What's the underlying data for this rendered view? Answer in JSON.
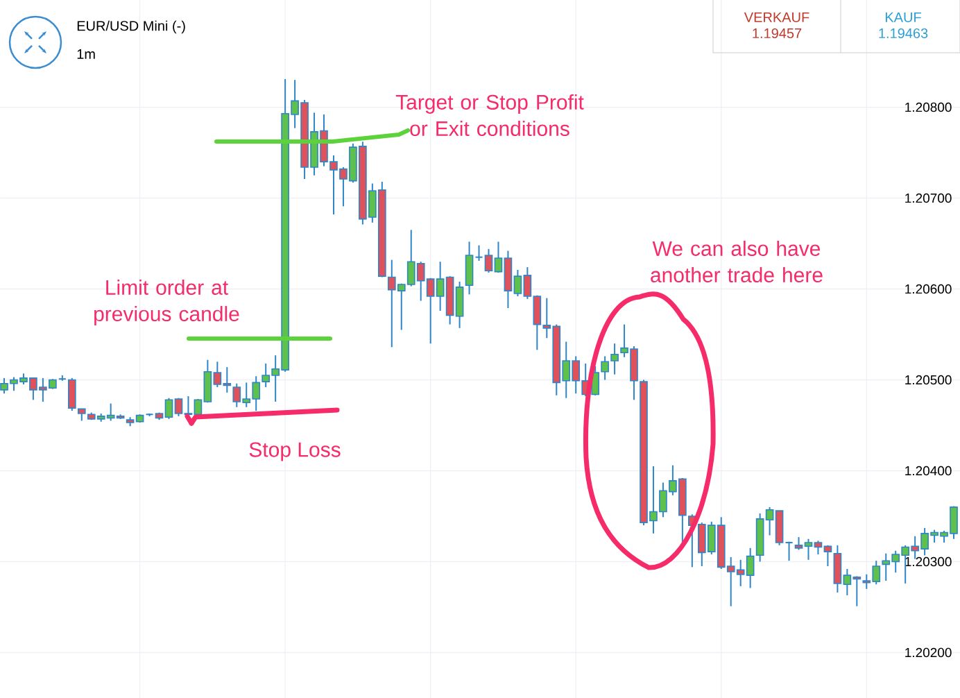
{
  "chart_data": {
    "type": "candlestick",
    "title": "EUR/USD Mini (-)",
    "subtitle": "1m",
    "annotations": [
      "VERKAUF",
      "1.19457",
      "KAUF",
      "1.19463",
      "Target or Stop Profit or Exit conditions",
      "Limit order at previous candle",
      "Stop Loss",
      "We can also have another trade here"
    ],
    "categories": [
      null,
      null,
      null,
      null,
      null,
      null,
      null,
      null,
      null,
      null,
      null,
      null,
      null,
      null,
      null,
      null,
      null,
      null,
      null,
      null,
      null,
      null,
      null,
      null,
      null,
      null,
      null,
      null,
      null,
      null,
      null,
      null,
      null,
      null,
      null,
      null,
      null,
      null,
      null,
      null,
      null,
      null,
      null,
      null,
      null,
      null,
      null,
      null,
      null,
      null,
      null,
      null,
      null,
      null,
      null,
      null,
      null,
      null,
      null,
      null,
      null,
      null,
      null,
      null,
      null,
      null,
      null,
      null,
      null,
      null,
      null,
      null,
      null,
      null,
      null,
      null,
      null,
      null,
      null,
      null,
      null,
      null,
      null,
      null,
      null,
      null,
      null,
      null,
      null,
      null,
      null,
      null,
      null,
      null,
      null,
      null,
      null,
      null,
      null
    ],
    "ohlc": [
      [
        1.20489,
        1.20502,
        1.20485,
        1.20496
      ],
      [
        1.20496,
        1.20503,
        1.20488,
        1.205
      ],
      [
        1.20498,
        1.20507,
        1.20495,
        1.20502
      ],
      [
        1.20502,
        1.20502,
        1.20478,
        1.20489
      ],
      [
        1.20492,
        1.20502,
        1.20476,
        1.20489
      ],
      [
        1.20491,
        1.20501,
        1.2049,
        1.205
      ],
      [
        1.20501,
        1.20505,
        1.20499,
        1.20501
      ],
      [
        1.205,
        1.20502,
        1.20466,
        1.20469
      ],
      [
        1.20468,
        1.20468,
        1.20455,
        1.20463
      ],
      [
        1.20462,
        1.20464,
        1.20456,
        1.20457
      ],
      [
        1.20457,
        1.20463,
        1.20454,
        1.2046
      ],
      [
        1.20458,
        1.20474,
        1.20455,
        1.20461
      ],
      [
        1.2046,
        1.20462,
        1.20457,
        1.20458
      ],
      [
        1.20456,
        1.20459,
        1.20449,
        1.20453
      ],
      [
        1.20454,
        1.20462,
        1.20453,
        1.20461
      ],
      [
        1.20462,
        1.20463,
        1.2046,
        1.20462
      ],
      [
        1.20463,
        1.20464,
        1.20456,
        1.20458
      ],
      [
        1.20459,
        1.2048,
        1.20457,
        1.20478
      ],
      [
        1.20479,
        1.2048,
        1.2046,
        1.20463
      ],
      [
        1.20463,
        1.20482,
        1.2046,
        1.20462
      ],
      [
        1.20462,
        1.20479,
        1.2046,
        1.20478
      ],
      [
        1.20476,
        1.20522,
        1.20475,
        1.20509
      ],
      [
        1.20508,
        1.2052,
        1.20492,
        1.20495
      ],
      [
        1.20496,
        1.20514,
        1.20486,
        1.20494
      ],
      [
        1.20492,
        1.20496,
        1.2047,
        1.20476
      ],
      [
        1.20475,
        1.20497,
        1.2047,
        1.20479
      ],
      [
        1.20479,
        1.20504,
        1.20466,
        1.20497
      ],
      [
        1.20498,
        1.20518,
        1.20492,
        1.20505
      ],
      [
        1.20505,
        1.20527,
        1.20476,
        1.20512
      ],
      [
        1.20511,
        1.20831,
        1.20509,
        1.20793
      ],
      [
        1.20792,
        1.2083,
        1.20777,
        1.20807
      ],
      [
        1.20805,
        1.20808,
        1.20721,
        1.20734
      ],
      [
        1.20734,
        1.20794,
        1.20725,
        1.20773
      ],
      [
        1.20774,
        1.20792,
        1.20735,
        1.2074
      ],
      [
        1.2074,
        1.20747,
        1.20682,
        1.20731
      ],
      [
        1.20732,
        1.20734,
        1.20691,
        1.20721
      ],
      [
        1.20719,
        1.2076,
        1.20717,
        1.20756
      ],
      [
        1.20757,
        1.20762,
        1.20671,
        1.20677
      ],
      [
        1.20679,
        1.20716,
        1.20673,
        1.20708
      ],
      [
        1.20709,
        1.20718,
        1.20613,
        1.20614
      ],
      [
        1.20613,
        1.20632,
        1.20536,
        1.20599
      ],
      [
        1.20598,
        1.20606,
        1.20555,
        1.20605
      ],
      [
        1.20605,
        1.20665,
        1.20603,
        1.2063
      ],
      [
        1.20628,
        1.2063,
        1.20587,
        1.20609
      ],
      [
        1.20611,
        1.20612,
        1.2054,
        1.20592
      ],
      [
        1.20592,
        1.2063,
        1.20576,
        1.20611
      ],
      [
        1.20613,
        1.20614,
        1.20561,
        1.20571
      ],
      [
        1.2057,
        1.20608,
        1.20557,
        1.20602
      ],
      [
        1.20604,
        1.20652,
        1.20594,
        1.20637
      ],
      [
        1.20635,
        1.20648,
        1.20631,
        1.20635
      ],
      [
        1.20637,
        1.20644,
        1.20618,
        1.2062
      ],
      [
        1.20619,
        1.20652,
        1.20618,
        1.20634
      ],
      [
        1.20634,
        1.20642,
        1.20579,
        1.20598
      ],
      [
        1.20595,
        1.20621,
        1.20592,
        1.20614
      ],
      [
        1.20615,
        1.20624,
        1.20589,
        1.20592
      ],
      [
        1.20592,
        1.20593,
        1.20533,
        1.20561
      ],
      [
        1.2056,
        1.2059,
        1.20546,
        1.20557
      ],
      [
        1.20559,
        1.20561,
        1.20483,
        1.20497
      ],
      [
        1.20499,
        1.20542,
        1.2048,
        1.20521
      ],
      [
        1.20521,
        1.20526,
        1.20485,
        1.20499
      ],
      [
        1.20499,
        1.20518,
        1.20482,
        1.20484
      ],
      [
        1.20484,
        1.20515,
        1.20483,
        1.20508
      ],
      [
        1.20509,
        1.20526,
        1.205,
        1.2052
      ],
      [
        1.20521,
        1.2054,
        1.20506,
        1.20528
      ],
      [
        1.2053,
        1.20561,
        1.20525,
        1.20535
      ],
      [
        1.20534,
        1.20537,
        1.20478,
        1.20499
      ],
      [
        1.20498,
        1.205,
        1.2034,
        1.20343
      ],
      [
        1.20345,
        1.20405,
        1.20331,
        1.20355
      ],
      [
        1.20355,
        1.20387,
        1.20349,
        1.20378
      ],
      [
        1.20377,
        1.20406,
        1.20373,
        1.20389
      ],
      [
        1.20391,
        1.20392,
        1.20321,
        1.20351
      ],
      [
        1.2035,
        1.20352,
        1.20294,
        1.2034
      ],
      [
        1.20341,
        1.20343,
        1.20295,
        1.2031
      ],
      [
        1.20311,
        1.20344,
        1.20308,
        1.2034
      ],
      [
        1.2034,
        1.20349,
        1.20292,
        1.20294
      ],
      [
        1.20295,
        1.20305,
        1.20251,
        1.20289
      ],
      [
        1.20291,
        1.20302,
        1.20273,
        1.20286
      ],
      [
        1.20285,
        1.20315,
        1.20271,
        1.20306
      ],
      [
        1.20307,
        1.20353,
        1.203,
        1.20347
      ],
      [
        1.20346,
        1.2036,
        1.20329,
        1.20357
      ],
      [
        1.20356,
        1.20356,
        1.20318,
        1.20321
      ],
      [
        1.20321,
        1.20322,
        1.20301,
        1.20321
      ],
      [
        1.20318,
        1.20327,
        1.20313,
        1.20315
      ],
      [
        1.20317,
        1.20325,
        1.20302,
        1.20321
      ],
      [
        1.20321,
        1.20323,
        1.20308,
        1.20316
      ],
      [
        1.20317,
        1.20318,
        1.20295,
        1.20311
      ],
      [
        1.20309,
        1.20318,
        1.20266,
        1.20276
      ],
      [
        1.20275,
        1.20292,
        1.20263,
        1.20285
      ],
      [
        1.20283,
        1.20284,
        1.20251,
        1.20281
      ],
      [
        1.20279,
        1.20286,
        1.2027,
        1.20277
      ],
      [
        1.20278,
        1.20301,
        1.20275,
        1.20295
      ],
      [
        1.20297,
        1.20309,
        1.20279,
        1.20301
      ],
      [
        1.203,
        1.20312,
        1.20288,
        1.20308
      ],
      [
        1.20307,
        1.20318,
        1.20276,
        1.20316
      ],
      [
        1.20317,
        1.20328,
        1.20303,
        1.20312
      ],
      [
        1.20314,
        1.20337,
        1.20307,
        1.20331
      ],
      [
        1.20329,
        1.20335,
        1.20321,
        1.20332
      ],
      [
        1.20328,
        1.20334,
        1.20321,
        1.20332
      ],
      [
        1.20331,
        1.20361,
        1.20325,
        1.2036
      ]
    ],
    "ylim": [
      1.2015,
      1.20918
    ],
    "yticks": [
      {
        "value": 1.202,
        "label": "1.20200"
      },
      {
        "value": 1.203,
        "label": "1.20300"
      },
      {
        "value": 1.204,
        "label": "1.20400"
      },
      {
        "value": 1.205,
        "label": "1.20500"
      },
      {
        "value": 1.206,
        "label": "1.20600"
      },
      {
        "value": 1.207,
        "label": "1.20700"
      },
      {
        "value": 1.208,
        "label": "1.20800"
      }
    ],
    "tick_labels": "y",
    "grid": true
  }
}
